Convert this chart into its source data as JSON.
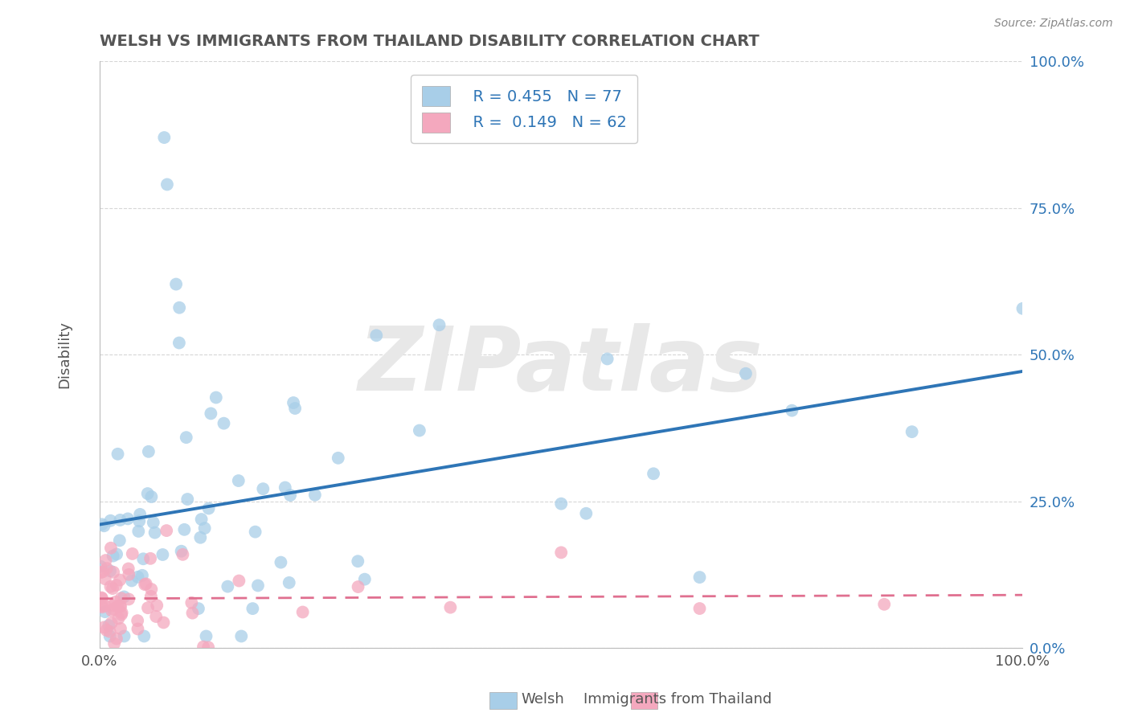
{
  "title": "WELSH VS IMMIGRANTS FROM THAILAND DISABILITY CORRELATION CHART",
  "source": "Source: ZipAtlas.com",
  "ylabel": "Disability",
  "xlim": [
    0,
    1
  ],
  "ylim": [
    0,
    1
  ],
  "xtick_positions": [
    0,
    1
  ],
  "xtick_labels": [
    "0.0%",
    "100.0%"
  ],
  "ytick_values": [
    0.0,
    0.25,
    0.5,
    0.75,
    1.0
  ],
  "ytick_labels": [
    "0.0%",
    "25.0%",
    "50.0%",
    "75.0%",
    "100.0%"
  ],
  "welsh_R": 0.455,
  "welsh_N": 77,
  "thai_R": 0.149,
  "thai_N": 62,
  "welsh_color": "#A8CEE8",
  "thai_color": "#F4A8BE",
  "welsh_line_color": "#2E75B6",
  "thai_line_color": "#E07090",
  "watermark": "ZIPatlas",
  "watermark_color": "#E8E8E8",
  "background_color": "#FFFFFF",
  "grid_color": "#CCCCCC",
  "title_color": "#555555",
  "axis_label_color": "#2E75B6",
  "welsh_seed": 10,
  "thai_seed": 77,
  "legend_text_color": "#2E75B6"
}
